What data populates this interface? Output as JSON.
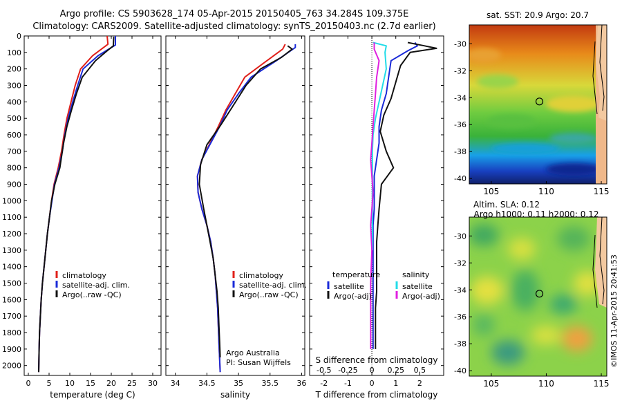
{
  "header": {
    "line1": "Argo profile: CS 5903628_174 05-Apr-2015 20150405_763 34.284S 109.375E",
    "line2": "Climatology: CARS2009. Satellite-adjusted climatology: synTS_20150403.nc (2.7d earlier)"
  },
  "side_label": "©IMOS 11-Apr-2015 20:41:53",
  "colors": {
    "climatology": "#e0201a",
    "satellite": "#1a2ad8",
    "argo": "#111111",
    "cyan": "#22dce8",
    "magenta": "#e020e0"
  },
  "depth_ticks": [
    "0",
    "100",
    "200",
    "300",
    "400",
    "500",
    "600",
    "700",
    "800",
    "900",
    "1000",
    "1100",
    "1200",
    "1300",
    "1400",
    "1500",
    "1600",
    "1700",
    "1800",
    "1900",
    "2000"
  ],
  "chart_data": [
    {
      "type": "line",
      "xlabel": "temperature (deg C)",
      "ylabel": "",
      "xlim": [
        -1,
        32
      ],
      "ylim": [
        2060,
        0
      ],
      "xticks": [
        "0",
        "5",
        "10",
        "15",
        "20",
        "25",
        "30"
      ],
      "legend": [
        "climatology",
        "satellite-adj. clim.",
        "Argo(..raw -QC)"
      ],
      "legend_position": "lower-center",
      "series": [
        {
          "name": "climatology",
          "x": [
            19.0,
            19.2,
            15.5,
            12.6,
            11.3,
            10.3,
            9.3,
            8.6,
            8.0,
            7.2,
            6.2,
            5.6,
            5.1,
            4.6,
            4.2,
            3.8,
            3.4,
            3.1,
            2.9,
            2.7,
            2.6,
            2.5
          ],
          "y": [
            0,
            50,
            120,
            200,
            300,
            400,
            500,
            600,
            700,
            800,
            900,
            1000,
            1100,
            1200,
            1300,
            1400,
            1500,
            1600,
            1700,
            1800,
            1900,
            2040
          ]
        },
        {
          "name": "satellite-adj. clim.",
          "x": [
            21.0,
            21.0,
            16.8,
            13.2,
            11.9,
            10.7,
            9.6,
            8.8,
            8.2,
            7.4,
            6.3,
            5.7,
            5.1,
            4.6,
            4.2,
            3.8,
            3.4,
            3.1,
            2.9,
            2.7,
            2.6,
            2.5
          ],
          "y": [
            0,
            55,
            120,
            200,
            300,
            400,
            500,
            600,
            700,
            800,
            900,
            1000,
            1100,
            1200,
            1300,
            1400,
            1500,
            1600,
            1700,
            1800,
            1900,
            2040
          ]
        },
        {
          "name": "Argo(..raw -QC)",
          "x": [
            20.6,
            20.5,
            19.0,
            16.2,
            13.0,
            11.6,
            10.4,
            9.3,
            8.5,
            7.6,
            6.4,
            5.6,
            5.1,
            4.6,
            4.2,
            3.8,
            3.4,
            3.1,
            2.9,
            2.7,
            2.6,
            2.5
          ],
          "y": [
            5,
            60,
            90,
            150,
            250,
            350,
            450,
            550,
            650,
            800,
            900,
            1000,
            1100,
            1200,
            1300,
            1400,
            1500,
            1600,
            1700,
            1800,
            1900,
            2040
          ]
        }
      ]
    },
    {
      "type": "line",
      "xlabel": "salinity",
      "ylabel": "",
      "xlim": [
        33.85,
        36.05
      ],
      "ylim": [
        2060,
        0
      ],
      "xticks": [
        "34",
        "34.5",
        "35",
        "35.5",
        "36"
      ],
      "legend": [
        "climatology",
        "satellite-adj. clim.",
        "Argo(..raw -QC)"
      ],
      "legend_position": "lower-right",
      "annotation": [
        "Argo Australia",
        "PI: Susan Wijffels"
      ],
      "series": [
        {
          "name": "climatology",
          "x": [
            35.74,
            35.7,
            35.45,
            35.1,
            34.95,
            34.8,
            34.68,
            34.55,
            34.42,
            34.35,
            34.36,
            34.42,
            34.5,
            34.56,
            34.6,
            34.63,
            34.65,
            34.67,
            34.68,
            34.69,
            34.7,
            34.71
          ],
          "y": [
            50,
            80,
            150,
            250,
            350,
            450,
            550,
            650,
            750,
            850,
            950,
            1050,
            1150,
            1250,
            1350,
            1450,
            1550,
            1650,
            1750,
            1850,
            1950,
            2040
          ]
        },
        {
          "name": "satellite-adj. clim.",
          "x": [
            35.9,
            35.9,
            35.6,
            35.2,
            35.0,
            34.82,
            34.7,
            34.56,
            34.42,
            34.35,
            34.36,
            34.42,
            34.5,
            34.56,
            34.6,
            34.63,
            34.65,
            34.67,
            34.68,
            34.69,
            34.7,
            34.71
          ],
          "y": [
            50,
            70,
            150,
            250,
            350,
            450,
            550,
            650,
            750,
            850,
            950,
            1050,
            1150,
            1250,
            1350,
            1450,
            1550,
            1650,
            1750,
            1850,
            1950,
            2040
          ]
        },
        {
          "name": "Argo(..raw -QC)",
          "x": [
            35.78,
            35.85,
            35.68,
            35.35,
            35.12,
            34.92,
            34.72,
            34.5,
            34.4,
            34.38,
            34.45,
            34.5,
            34.55,
            34.6,
            34.63,
            34.66,
            34.68,
            34.69,
            34.7,
            34.71
          ],
          "y": [
            60,
            80,
            130,
            200,
            300,
            420,
            540,
            660,
            780,
            900,
            1050,
            1150,
            1250,
            1350,
            1450,
            1550,
            1650,
            1750,
            1850,
            1950
          ]
        }
      ]
    },
    {
      "type": "line",
      "xlabel": "T difference from climatology",
      "top_axis_label": "S difference from climatology",
      "ylabel": "",
      "xlim": [
        -2.6,
        3.0
      ],
      "ylim": [
        2060,
        0
      ],
      "xticks": [
        "-2",
        "-1",
        "0",
        "1",
        "2"
      ],
      "top_xticks": [
        "-0.5",
        "-0.25",
        "0",
        "0.25",
        "0.5"
      ],
      "legend": [
        "temperature",
        "satellite",
        "Argo(-adj)",
        "salinity",
        "satellite",
        "Argo(-adj)"
      ],
      "legend_position": "lower-center",
      "series": [
        {
          "name": "satellite",
          "x": [
            1.8,
            1.9,
            1.5,
            0.8,
            0.7,
            0.6,
            0.4,
            0.3,
            0.3,
            0.2,
            0.1,
            0.1,
            0.1,
            0.05,
            0.05,
            0.05,
            0.05,
            0.05,
            0.05,
            0.05,
            0.05
          ],
          "y": [
            40,
            60,
            90,
            150,
            250,
            350,
            450,
            550,
            650,
            750,
            850,
            950,
            1050,
            1150,
            1250,
            1350,
            1450,
            1550,
            1650,
            1750,
            1900
          ]
        },
        {
          "name": "Argo(-adj)",
          "x": [
            1.5,
            2.2,
            2.7,
            1.6,
            1.2,
            1.0,
            0.8,
            0.5,
            0.35,
            0.6,
            0.9,
            0.4,
            0.3,
            0.25,
            0.2,
            0.2,
            0.2,
            0.2,
            0.15,
            0.15,
            0.15
          ],
          "y": [
            40,
            60,
            75,
            100,
            180,
            280,
            380,
            480,
            580,
            700,
            800,
            900,
            1050,
            1150,
            1250,
            1350,
            1450,
            1550,
            1650,
            1750,
            1900
          ]
        },
        {
          "name": "satellite",
          "x": [
            0.05,
            0.6,
            0.55,
            0.6,
            0.45,
            0.3,
            0.15,
            0.05,
            0.02,
            0.02,
            0.02,
            0.02,
            0.02,
            0.02
          ],
          "y": [
            40,
            60,
            100,
            200,
            300,
            400,
            500,
            600,
            700,
            800,
            900,
            1000,
            1150,
            1300
          ]
        },
        {
          "name": "Argo(-adj)",
          "x": [
            0.1,
            0.1,
            0.3,
            0.2,
            0.15,
            0.1,
            0.05,
            0.0,
            -0.05,
            0.0,
            0.05,
            0.0,
            -0.05,
            0.0,
            -0.05,
            -0.05
          ],
          "y": [
            40,
            80,
            150,
            250,
            350,
            450,
            550,
            650,
            750,
            850,
            950,
            1050,
            1150,
            1300,
            1500,
            1900
          ]
        }
      ]
    },
    {
      "type": "heatmap",
      "title": "sat. SST: 20.9 Argo: 20.7",
      "xticks": [
        "105",
        "110",
        "115"
      ],
      "yticks": [
        "-30",
        "-32",
        "-34",
        "-36",
        "-38",
        "-40"
      ],
      "xlim": [
        103,
        115.5
      ],
      "ylim": [
        -40.4,
        -28.6
      ],
      "marker": {
        "lon": 109.375,
        "lat": -34.284
      }
    },
    {
      "type": "heatmap",
      "title": "Altim. SLA: 0.12",
      "subtitle": "Argo h1000: 0.11 h2000: 0.12",
      "xticks": [
        "105",
        "110",
        "115"
      ],
      "yticks": [
        "-30",
        "-32",
        "-34",
        "-36",
        "-38",
        "-40"
      ],
      "xlim": [
        103,
        115.5
      ],
      "ylim": [
        -40.4,
        -28.6
      ],
      "marker": {
        "lon": 109.375,
        "lat": -34.284
      }
    }
  ]
}
